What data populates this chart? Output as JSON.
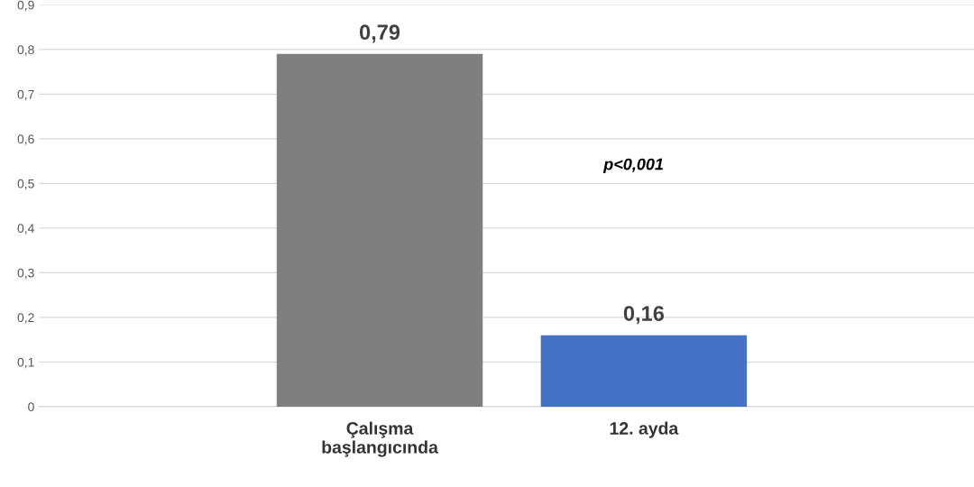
{
  "chart_data": {
    "type": "bar",
    "categories": [
      "Çalışma başlangıcında",
      "12. ayda"
    ],
    "values": [
      0.79,
      0.16
    ],
    "colors": [
      "#7f7f7f",
      "#4472c4"
    ],
    "value_labels": [
      "0,79",
      "0,16"
    ],
    "ylim": [
      0,
      0.9
    ],
    "yticks": [
      0,
      {
        "value": 0.1,
        "label": "0,1"
      },
      {
        "value": 0.2,
        "label": "0,2"
      },
      {
        "value": 0.3,
        "label": "0,3"
      },
      {
        "value": 0.4,
        "label": "0,4"
      },
      {
        "value": 0.5,
        "label": "0,5"
      },
      {
        "value": 0.6,
        "label": "0,6"
      },
      {
        "value": 0.7,
        "label": "0,7"
      },
      {
        "value": 0.8,
        "label": "0,8"
      },
      {
        "value": 0.9,
        "label": "0,9"
      }
    ],
    "grid": "y",
    "annotations": [
      "p<0,001"
    ]
  }
}
